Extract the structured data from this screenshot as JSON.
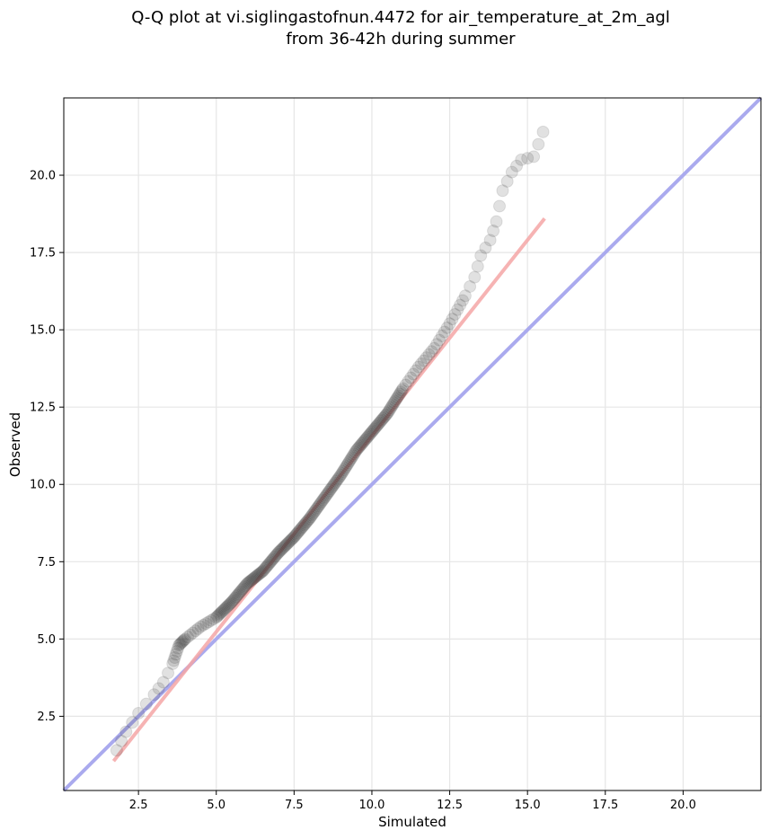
{
  "chart_data": {
    "type": "scatter",
    "title_lines": [
      "Q-Q plot at vi.siglingastofnun.4472 for air_temperature_at_2m_agl",
      "from 36-42h during summer"
    ],
    "xlabel": "Simulated",
    "ylabel": "Observed",
    "xlim": [
      0.1,
      22.5
    ],
    "ylim": [
      0.1,
      22.5
    ],
    "xticks": [
      2.5,
      5.0,
      7.5,
      10.0,
      12.5,
      15.0,
      17.5,
      20.0
    ],
    "xtick_labels": [
      "2.5",
      "5.0",
      "7.5",
      "10.0",
      "12.5",
      "15.0",
      "17.5",
      "20.0"
    ],
    "yticks": [
      2.5,
      5.0,
      7.5,
      10.0,
      12.5,
      15.0,
      17.5,
      20.0
    ],
    "ytick_labels": [
      "2.5",
      "5.0",
      "7.5",
      "10.0",
      "12.5",
      "15.0",
      "17.5",
      "20.0"
    ],
    "grid": true,
    "reference_line": {
      "name": "y = x",
      "color": "#aaaaee",
      "points": [
        [
          0.1,
          0.1
        ],
        [
          22.5,
          22.5
        ]
      ]
    },
    "fit_line": {
      "name": "fit",
      "color": "#f4a6a6",
      "points": [
        [
          1.7,
          1.05
        ],
        [
          15.55,
          18.6
        ]
      ]
    },
    "point_color": "#333333",
    "quantile_anchors": {
      "x": [
        1.8,
        2.1,
        2.5,
        3.0,
        3.3,
        3.6,
        3.8,
        4.0,
        4.5,
        5.0,
        5.5,
        6.0,
        6.5,
        7.0,
        7.5,
        8.0,
        8.5,
        9.0,
        9.5,
        10.0,
        10.5,
        11.0,
        11.5,
        12.0,
        12.5,
        13.0,
        13.3,
        13.5,
        13.8,
        14.0,
        14.2,
        14.5,
        14.8,
        15.2,
        15.5
      ],
      "y": [
        1.4,
        2.0,
        2.6,
        3.2,
        3.6,
        4.2,
        4.8,
        5.0,
        5.4,
        5.7,
        6.2,
        6.8,
        7.2,
        7.8,
        8.3,
        8.9,
        9.6,
        10.3,
        11.1,
        11.7,
        12.3,
        13.1,
        13.8,
        14.4,
        15.2,
        16.1,
        16.7,
        17.4,
        17.9,
        18.5,
        19.5,
        20.1,
        20.5,
        20.6,
        21.4
      ]
    }
  }
}
